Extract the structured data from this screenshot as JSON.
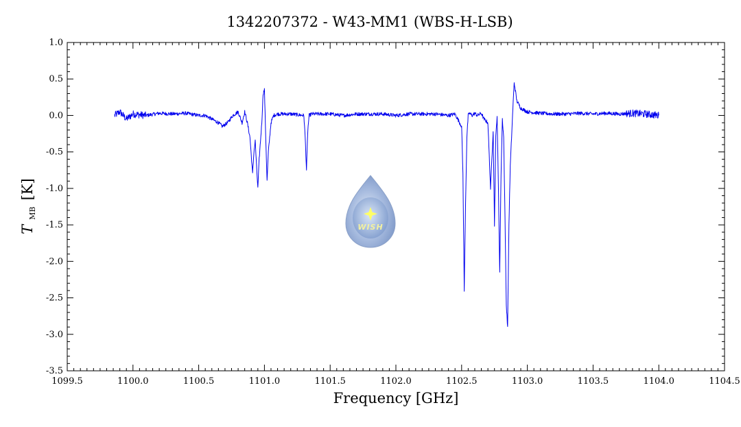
{
  "chart_data": {
    "type": "line",
    "title": "1342207372 - W43-MM1 (WBS-H-LSB)",
    "xlabel": "Frequency [GHz]",
    "ylabel": {
      "symbol": "T",
      "subscript": "MB",
      "unit": "[K]"
    },
    "xlim": [
      1099.5,
      1104.5
    ],
    "ylim": [
      -3.5,
      1.0
    ],
    "xticks": [
      1099.5,
      1100.0,
      1100.5,
      1101.0,
      1101.5,
      1102.0,
      1102.5,
      1103.0,
      1103.5,
      1104.0,
      1104.5
    ],
    "xtick_labels": [
      "1099.5",
      "1100.0",
      "1100.5",
      "1101.0",
      "1101.5",
      "1102.0",
      "1102.5",
      "1103.0",
      "1103.5",
      "1104.0",
      "1104.5"
    ],
    "yticks": [
      1.0,
      0.5,
      0.0,
      -0.5,
      -1.0,
      -1.5,
      -2.0,
      -2.5,
      -3.0,
      -3.5
    ],
    "ytick_labels": [
      "1.0",
      "0.5",
      "0.0",
      "-0.5",
      "-1.0",
      "-1.5",
      "-2.0",
      "-2.5",
      "-3.0",
      "-3.5"
    ],
    "grid": false,
    "line_color": "#0000ee",
    "series": [
      {
        "x": [
          1099.86,
          1099.9,
          1099.95,
          1100.0,
          1100.1,
          1100.2,
          1100.3,
          1100.4,
          1100.5,
          1100.55,
          1100.6,
          1100.65,
          1100.68,
          1100.72,
          1100.76,
          1100.8,
          1100.83,
          1100.85,
          1100.87,
          1100.89,
          1100.9,
          1100.91,
          1100.92,
          1100.93,
          1100.94,
          1100.95,
          1100.96,
          1100.98,
          1100.99,
          1101.0,
          1101.01,
          1101.02,
          1101.03,
          1101.05,
          1101.07,
          1101.1,
          1101.2,
          1101.3,
          1101.31,
          1101.32,
          1101.33,
          1101.34,
          1101.36,
          1101.4,
          1101.5,
          1101.6,
          1101.7,
          1101.8,
          1101.9,
          1102.0,
          1102.1,
          1102.2,
          1102.3,
          1102.4,
          1102.45,
          1102.5,
          1102.51,
          1102.52,
          1102.53,
          1102.54,
          1102.55,
          1102.56,
          1102.58,
          1102.6,
          1102.62,
          1102.65,
          1102.67,
          1102.7,
          1102.72,
          1102.74,
          1102.75,
          1102.76,
          1102.77,
          1102.78,
          1102.79,
          1102.8,
          1102.81,
          1102.82,
          1102.83,
          1102.84,
          1102.85,
          1102.86,
          1102.87,
          1102.88,
          1102.89,
          1102.9,
          1102.92,
          1102.95,
          1103.0,
          1103.1,
          1103.2,
          1103.3,
          1103.4,
          1103.5,
          1103.6,
          1103.7,
          1103.8,
          1103.9,
          1104.0
        ],
        "y": [
          0.0,
          0.05,
          -0.05,
          0.02,
          0.0,
          0.03,
          0.02,
          0.03,
          0.0,
          0.0,
          -0.05,
          -0.1,
          -0.15,
          -0.1,
          0.0,
          0.05,
          -0.1,
          0.05,
          -0.1,
          -0.3,
          -0.55,
          -0.8,
          -0.5,
          -0.35,
          -0.7,
          -1.0,
          -0.6,
          -0.1,
          0.3,
          0.35,
          -0.3,
          -0.9,
          -0.5,
          -0.1,
          0.0,
          0.02,
          0.02,
          0.0,
          -0.3,
          -0.75,
          -0.2,
          0.0,
          0.02,
          0.02,
          0.02,
          0.0,
          0.02,
          0.02,
          0.02,
          0.0,
          0.02,
          0.02,
          0.02,
          0.0,
          0.02,
          -0.15,
          -0.8,
          -2.4,
          -1.2,
          -0.3,
          0.0,
          0.03,
          0.0,
          0.03,
          0.0,
          0.03,
          -0.05,
          -0.1,
          -1.0,
          -0.2,
          -1.5,
          -0.3,
          0.0,
          -1.0,
          -2.15,
          -0.8,
          -0.05,
          -0.3,
          -1.4,
          -2.6,
          -2.9,
          -1.5,
          -0.7,
          -0.3,
          0.1,
          0.45,
          0.2,
          0.1,
          0.05,
          0.03,
          0.02,
          0.02,
          0.03,
          0.02,
          0.03,
          0.02,
          0.03,
          0.02,
          0.0
        ]
      }
    ],
    "watermark": {
      "text": "WISH"
    }
  }
}
